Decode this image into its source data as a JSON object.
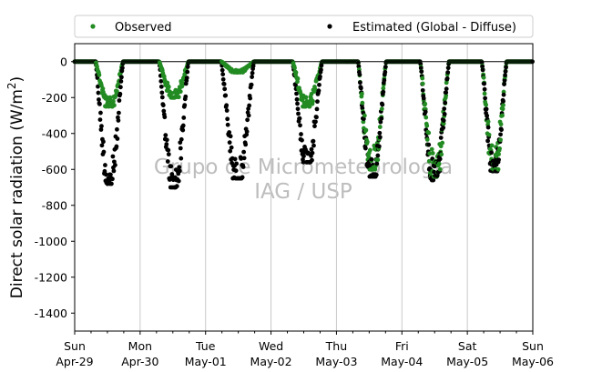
{
  "chart_data": {
    "type": "scatter",
    "title": "",
    "ylabel": {
      "prefix": "Direct solar radiation (W/m",
      "sup": "2",
      "suffix": ")"
    },
    "xlabel": "",
    "x_unit": "day",
    "xlim": [
      0,
      7
    ],
    "ylim": [
      -1500,
      100
    ],
    "yticks": [
      0,
      -200,
      -400,
      -600,
      -800,
      -1000,
      -1200,
      -1400
    ],
    "xticks": [
      {
        "x": 0,
        "line1": "Sun",
        "line2": "Apr-29"
      },
      {
        "x": 1,
        "line1": "Mon",
        "line2": "Apr-30"
      },
      {
        "x": 2,
        "line1": "Tue",
        "line2": "May-01"
      },
      {
        "x": 3,
        "line1": "Wed",
        "line2": "May-02"
      },
      {
        "x": 4,
        "line1": "Thu",
        "line2": "May-03"
      },
      {
        "x": 5,
        "line1": "Fri",
        "line2": "May-04"
      },
      {
        "x": 6,
        "line1": "Sat",
        "line2": "May-05"
      },
      {
        "x": 7,
        "line1": "Sun",
        "line2": "May-06"
      }
    ],
    "grid": "vertical",
    "zero_line": true,
    "legend": {
      "placement": "top",
      "ncol": 2
    },
    "watermark": [
      "Grupo de Micrometeorologia",
      "IAG / USP"
    ],
    "series": [
      {
        "name": "Observed",
        "color": "#228B22",
        "marker": "dot"
      },
      {
        "name": "Estimated (Global - Diffuse)",
        "color": "#000000",
        "marker": "dot"
      }
    ],
    "daily_profiles": [
      {
        "day": "Apr-29",
        "start": 0.32,
        "end": 0.74,
        "observed_min": -250,
        "estimated_min": -680
      },
      {
        "day": "Apr-30",
        "start": 1.29,
        "end": 1.74,
        "observed_min": -200,
        "estimated_min": -700
      },
      {
        "day": "May-01",
        "start": 2.24,
        "end": 2.74,
        "observed_min": -60,
        "estimated_min": -650
      },
      {
        "day": "May-02",
        "start": 3.33,
        "end": 3.78,
        "observed_min": -250,
        "estimated_min": -560
      },
      {
        "day": "May-03",
        "start": 4.33,
        "end": 4.76,
        "observed_min": -600,
        "estimated_min": -640
      },
      {
        "day": "May-04",
        "start": 5.28,
        "end": 5.72,
        "observed_min": -640,
        "estimated_min": -660
      },
      {
        "day": "May-05",
        "start": 6.22,
        "end": 6.6,
        "observed_min": -600,
        "estimated_min": -610
      }
    ]
  }
}
